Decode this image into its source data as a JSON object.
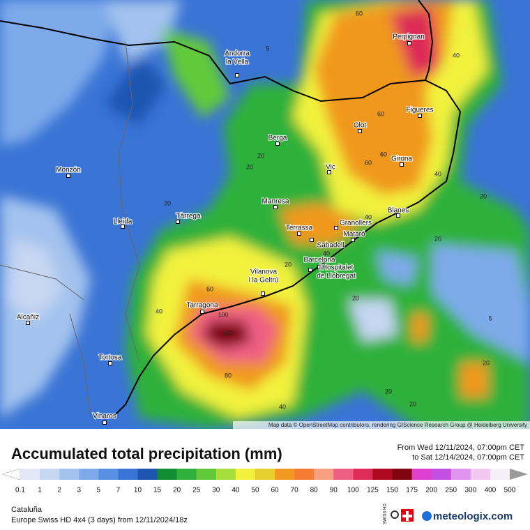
{
  "map": {
    "cities": [
      {
        "lines": [
          "Andorra",
          "la Vella"
        ]
      },
      {
        "lines": [
          "Perpignan"
        ]
      },
      {
        "lines": [
          "Figueres"
        ]
      },
      {
        "lines": [
          "Olot"
        ]
      },
      {
        "lines": [
          "Berga"
        ]
      },
      {
        "lines": [
          "Girona"
        ]
      },
      {
        "lines": [
          "Vic"
        ]
      },
      {
        "lines": [
          "Monzón"
        ]
      },
      {
        "lines": [
          "Manresa"
        ]
      },
      {
        "lines": [
          "Blanes"
        ]
      },
      {
        "lines": [
          "Tàrrega"
        ]
      },
      {
        "lines": [
          "Lleida"
        ]
      },
      {
        "lines": [
          "Granollers"
        ]
      },
      {
        "lines": [
          "Terrassa"
        ]
      },
      {
        "lines": [
          "Mataró"
        ]
      },
      {
        "lines": [
          "Sabadell"
        ]
      },
      {
        "lines": [
          "Barcelona"
        ]
      },
      {
        "lines": [
          "l'Hospitalet",
          "de Llobregat"
        ]
      },
      {
        "lines": [
          "Vilanova",
          "i la Geltrú"
        ]
      },
      {
        "lines": [
          "Tarragona"
        ]
      },
      {
        "lines": [
          "Alcañiz"
        ]
      },
      {
        "lines": [
          "Tortosa"
        ]
      },
      {
        "lines": [
          "Vinaros"
        ]
      }
    ],
    "contour_labels": [
      "60",
      "5",
      "40",
      "60",
      "60",
      "60",
      "20",
      "20",
      "40",
      "20",
      "20",
      "40",
      "20",
      "40",
      "20",
      "60",
      "40",
      "100",
      "20",
      "5",
      "160",
      "80",
      "20",
      "20",
      "40",
      "20"
    ],
    "attribution": "Map data © OpenStreetMap contributors, rendering GIScience Research Group @ Heidelberg University"
  },
  "header": {
    "title": "Accumulated total precipitation (mm)",
    "from": "From Wed 12/11/2024, 07:00pm CET",
    "to": "to Sat 12/14/2024, 07:00pm CET"
  },
  "legend": {
    "labels": [
      "0.1",
      "1",
      "2",
      "3",
      "5",
      "7",
      "10",
      "15",
      "20",
      "25",
      "30",
      "40",
      "50",
      "60",
      "70",
      "80",
      "90",
      "100",
      "125",
      "150",
      "175",
      "200",
      "250",
      "300",
      "400",
      "500"
    ],
    "colors": [
      "#ffffff",
      "#e3e6f6",
      "#c6d6f3",
      "#a3c2ee",
      "#7eaaea",
      "#5a90e2",
      "#3a74d5",
      "#1e55b2",
      "#138d32",
      "#2fb13b",
      "#62c93a",
      "#a6df3b",
      "#f2f23d",
      "#e4cf2d",
      "#f0981f",
      "#f47d33",
      "#f6a07f",
      "#ef5f83",
      "#dd2c57",
      "#b00a22",
      "#7f0511",
      "#e13fcf",
      "#c250e0",
      "#e094f0",
      "#f1c6f1",
      "#f4f0f8",
      "#cfcfcf",
      "#9a9a9a"
    ]
  },
  "footer": {
    "region": "Cataluña",
    "model": "Europe Swiss HD 4x4  (3 days)  from  12/11/2024/18z",
    "badge": "SWISS HD",
    "brand": "meteologix.com"
  }
}
